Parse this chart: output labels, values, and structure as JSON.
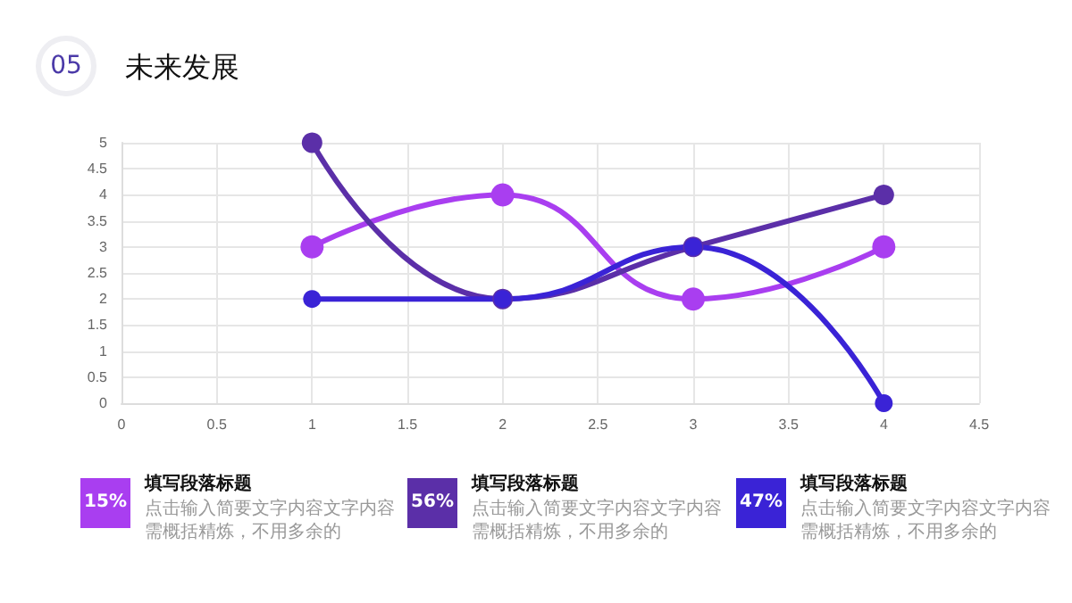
{
  "chart_data": {
    "type": "line",
    "title": "未来发展",
    "x": [
      1,
      2,
      3,
      4
    ],
    "series": [
      {
        "color": "#a93ef0",
        "values": [
          3,
          4,
          2,
          3
        ]
      },
      {
        "color": "#5b2fa8",
        "values": [
          5,
          2,
          3,
          4
        ]
      },
      {
        "color": "#3a23d6",
        "values": [
          2,
          2,
          3,
          0
        ]
      }
    ],
    "xlim": [
      0,
      4.5
    ],
    "xticks": [
      0,
      0.5,
      1,
      1.5,
      2,
      2.5,
      3,
      3.5,
      4,
      4.5
    ],
    "ylim": [
      0,
      5
    ],
    "yticks": [
      0,
      0.5,
      1,
      1.5,
      2,
      2.5,
      3,
      3.5,
      4,
      4.5,
      5
    ],
    "grid": true,
    "marker": "circle",
    "line_style": "solid",
    "annotations": [
      "05",
      "15%",
      "填写段落标题",
      "点击输入简要文字内容文字内容需概括精炼，不用多余的",
      "56%",
      "填写段落标题",
      "点击输入简要文字内容文字内容需概括精炼，不用多余的",
      "47%",
      "填写段落标题",
      "点击输入简要文字内容文字内容需概括精炼，不用多余的"
    ]
  }
}
